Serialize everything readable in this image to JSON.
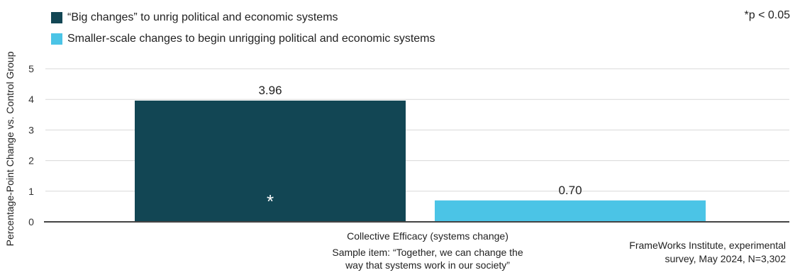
{
  "colors": {
    "series1": "#124654",
    "series2": "#4bc4e6",
    "axis": "#444444",
    "grid": "#d8d8d8"
  },
  "significance_note": "*p < 0.05",
  "source_note": [
    "FrameWorks Institute, experimental",
    "survey, May 2024, N=3,302"
  ],
  "chart_data": {
    "type": "bar",
    "ylabel": "Percentage-Point Change vs. Control Group",
    "ylim": [
      0,
      5
    ],
    "yticks": [
      "0",
      "1",
      "2",
      "3",
      "4",
      "5"
    ],
    "grid": true,
    "legend_position": "top-left",
    "categories": [
      {
        "label": "Collective Efficacy (systems change)",
        "sublabel": [
          "Sample item: “Together, we can change the",
          "way that systems work in our society”"
        ]
      }
    ],
    "series": [
      {
        "name": "“Big changes” to unrig political and economic systems",
        "values": [
          3.96
        ],
        "data_labels": [
          "3.96"
        ],
        "significant": [
          true
        ],
        "significance_marker": "*"
      },
      {
        "name": "Smaller-scale changes to begin unrigging political and economic systems",
        "values": [
          0.7
        ],
        "data_labels": [
          "0.70"
        ],
        "significant": [
          false
        ],
        "significance_marker": ""
      }
    ]
  }
}
